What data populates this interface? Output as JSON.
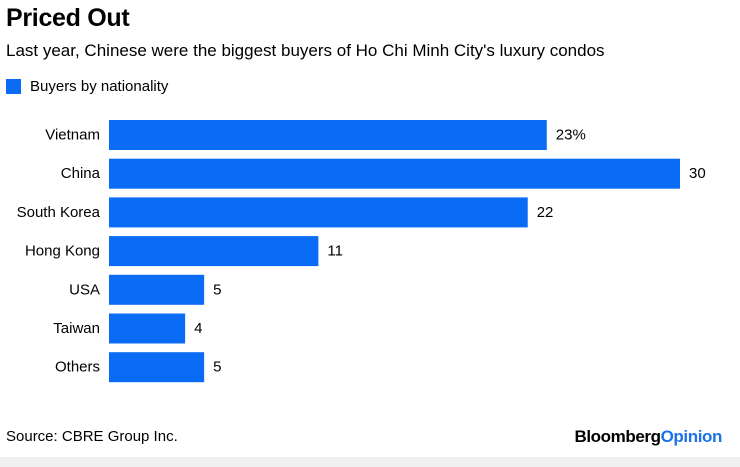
{
  "title": "Priced Out",
  "subtitle": "Last year, Chinese were the biggest buyers of Ho Chi Minh City's luxury condos",
  "legend": {
    "label": "Buyers by nationality"
  },
  "source": "Source: CBRE Group Inc.",
  "brand": {
    "part1": "Bloomberg",
    "part2": "Opinion"
  },
  "colors": {
    "bar": "#0a6cf5",
    "brand_accent": "#1a73e8",
    "text": "#000000"
  },
  "chart_data": {
    "type": "bar",
    "orientation": "horizontal",
    "title": "Priced Out",
    "subtitle": "Last year, Chinese were the biggest buyers of Ho Chi Minh City's luxury condos",
    "xlabel": "",
    "ylabel": "",
    "unit": "%",
    "xlim": [
      0,
      30
    ],
    "grid": false,
    "legend_position": "top-left",
    "categories": [
      "Vietnam",
      "China",
      "South Korea",
      "Hong Kong",
      "USA",
      "Taiwan",
      "Others"
    ],
    "series": [
      {
        "name": "Buyers by nationality",
        "values": [
          23,
          30,
          22,
          11,
          5,
          4,
          5
        ]
      }
    ],
    "value_labels": [
      "23%",
      "30",
      "22",
      "11",
      "5",
      "4",
      "5"
    ]
  }
}
